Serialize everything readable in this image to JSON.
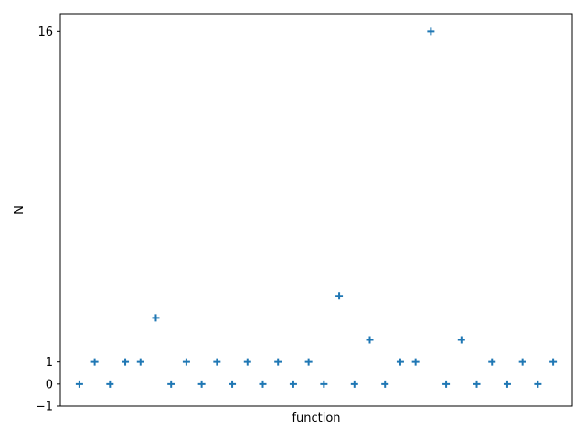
{
  "chart_data": {
    "type": "scatter",
    "marker": "plus",
    "color": "#1f77b4",
    "xlabel": "function",
    "ylabel": "N",
    "ylim": [
      -1,
      16.8
    ],
    "xlim": [
      -1.25,
      32.25
    ],
    "x_ticks_visible": false,
    "y_ticks": [
      {
        "value": -1,
        "label": "−1"
      },
      {
        "value": 0,
        "label": "0"
      },
      {
        "value": 1,
        "label": "1"
      },
      {
        "value": 16,
        "label": "16"
      }
    ],
    "grid": false,
    "x": [
      0,
      1,
      2,
      3,
      4,
      5,
      6,
      7,
      8,
      9,
      10,
      11,
      12,
      13,
      14,
      15,
      16,
      17,
      18,
      19,
      20,
      21,
      22,
      23,
      24,
      25,
      26,
      27,
      28,
      29,
      30,
      31
    ],
    "y": [
      0,
      1,
      0,
      1,
      1,
      3,
      0,
      1,
      0,
      1,
      0,
      1,
      0,
      1,
      0,
      1,
      0,
      4,
      0,
      2,
      0,
      1,
      1,
      16,
      0,
      2,
      0,
      1,
      0,
      1,
      0,
      1
    ]
  }
}
